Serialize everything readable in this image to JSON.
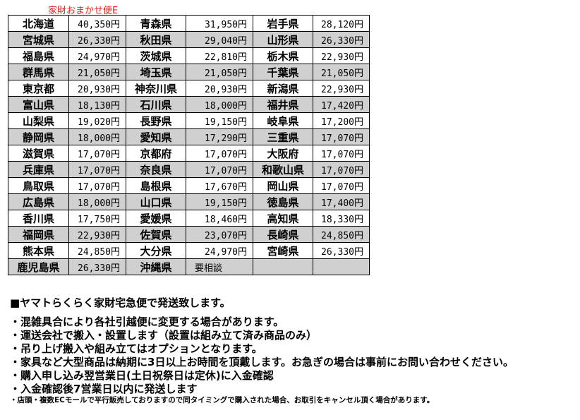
{
  "caption": "家財おまかせ便E",
  "rows": [
    [
      [
        "北海道",
        "40,350円"
      ],
      [
        "青森県",
        "31,950円"
      ],
      [
        "岩手県",
        "28,120円"
      ]
    ],
    [
      [
        "宮城県",
        "26,330円"
      ],
      [
        "秋田県",
        "29,040円"
      ],
      [
        "山形県",
        "26,330円"
      ]
    ],
    [
      [
        "福島県",
        "24,970円"
      ],
      [
        "茨城県",
        "22,810円"
      ],
      [
        "栃木県",
        "22,930円"
      ]
    ],
    [
      [
        "群馬県",
        "21,050円"
      ],
      [
        "埼玉県",
        "21,050円"
      ],
      [
        "千葉県",
        "21,050円"
      ]
    ],
    [
      [
        "東京都",
        "20,930円"
      ],
      [
        "神奈川県",
        "20,930円"
      ],
      [
        "新潟県",
        "22,930円"
      ]
    ],
    [
      [
        "富山県",
        "18,130円"
      ],
      [
        "石川県",
        "18,000円"
      ],
      [
        "福井県",
        "17,420円"
      ]
    ],
    [
      [
        "山梨県",
        "19,020円"
      ],
      [
        "長野県",
        "19,150円"
      ],
      [
        "岐阜県",
        "17,200円"
      ]
    ],
    [
      [
        "静岡県",
        "18,000円"
      ],
      [
        "愛知県",
        "17,290円"
      ],
      [
        "三重県",
        "17,070円"
      ]
    ],
    [
      [
        "滋賀県",
        "17,070円"
      ],
      [
        "京都府",
        "17,070円"
      ],
      [
        "大阪府",
        "17,070円"
      ]
    ],
    [
      [
        "兵庫県",
        "17,070円"
      ],
      [
        "奈良県",
        "17,070円"
      ],
      [
        "和歌山県",
        "17,070円"
      ]
    ],
    [
      [
        "鳥取県",
        "17,070円"
      ],
      [
        "島根県",
        "17,670円"
      ],
      [
        "岡山県",
        "17,070円"
      ]
    ],
    [
      [
        "広島県",
        "18,000円"
      ],
      [
        "山口県",
        "19,150円"
      ],
      [
        "徳島県",
        "17,400円"
      ]
    ],
    [
      [
        "香川県",
        "17,750円"
      ],
      [
        "愛媛県",
        "18,460円"
      ],
      [
        "高知県",
        "18,330円"
      ]
    ],
    [
      [
        "福岡県",
        "22,930円"
      ],
      [
        "佐賀県",
        "23,070円"
      ],
      [
        "長崎県",
        "24,850円"
      ]
    ],
    [
      [
        "熊本県",
        "24,850円"
      ],
      [
        "大分県",
        "24,970円"
      ],
      [
        "宮崎県",
        "26,330円"
      ]
    ],
    [
      [
        "鹿児島県",
        "26,330円"
      ],
      [
        "沖縄県",
        "要相談"
      ],
      [
        "",
        ""
      ]
    ]
  ],
  "notes": {
    "heading": "■ヤマトらくらく家財宅急便で発送致します。",
    "items": [
      "・混雑具合により各社引越便に変更する場合があります。",
      "・運送会社で搬入・設置します（設置は組み立て済み商品のみ）",
      "・吊り上げ搬入や組み立てはオプションとなります。",
      "・家具など大型商品は納期に3日以上お時間を頂戴します。お急ぎの場合は事前にお問い合わせください。",
      "・購入申し込み翌営業日(土日祝祭日は定休)に入金確認",
      "・入金確認後7営業日以内に発送します"
    ],
    "small": "・店頭・複数ECモールで平行販売しておりますので同タイミングで購入された場合、お取引をキャンセル頂く場合があります。"
  },
  "colors": {
    "caption": "#e0201c",
    "row_shade": "#d0d0d0"
  }
}
